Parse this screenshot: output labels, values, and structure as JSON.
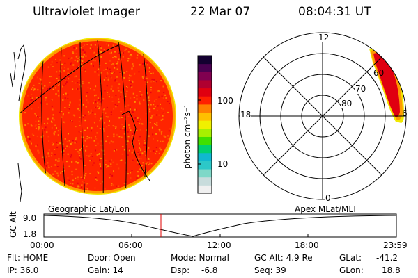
{
  "header": {
    "instrument": "Ultraviolet Imager",
    "date": "22 Mar 07",
    "time": "08:04:31 UT"
  },
  "colorbar": {
    "unit_label": "photon cm⁻²s⁻¹",
    "ticks": [
      "100",
      "10"
    ],
    "colors": [
      "#f0f0f0",
      "#c8dcdc",
      "#7fd8c8",
      "#2cc8c8",
      "#10b8d0",
      "#00d070",
      "#40e000",
      "#a8f000",
      "#f0f000",
      "#ffc000",
      "#ff8000",
      "#ff2000",
      "#e00010",
      "#b00030",
      "#800050",
      "#4a0050",
      "#140030"
    ]
  },
  "left_panel": {
    "label": "Geographic Lat/Lon",
    "disk_color": "#ff2400",
    "edge_color": "#ff9a00",
    "rim_color": "#f0e800"
  },
  "right_panel": {
    "label": "Apex MLat/MLT",
    "mlt_labels": {
      "top": "12",
      "left": "18",
      "bottom": "0",
      "right": "6"
    },
    "mlat_labels": [
      "60",
      "70",
      "80"
    ]
  },
  "altitude_plot": {
    "ylabel": "GC Alt",
    "yticks": [
      "9.0",
      "1.8"
    ],
    "xticks": [
      "00:00",
      "06:00",
      "12:00",
      "18:00",
      "23:59"
    ],
    "marker_color": "#e00000"
  },
  "info": {
    "flt": "Flt: HOME",
    "ip": "IP: 36.0",
    "door": "Door: Open",
    "gain": "Gain: 14",
    "mode": "Mode: Normal",
    "dsp_label": "Dsp:",
    "dsp_value": "-6.8",
    "gc_alt": "GC Alt: 4.9 Re",
    "seq": "Seq: 39",
    "glat_label": "GLat:",
    "glat_value": "-41.2",
    "glon_label": "GLon:",
    "glon_value": "18.8"
  }
}
